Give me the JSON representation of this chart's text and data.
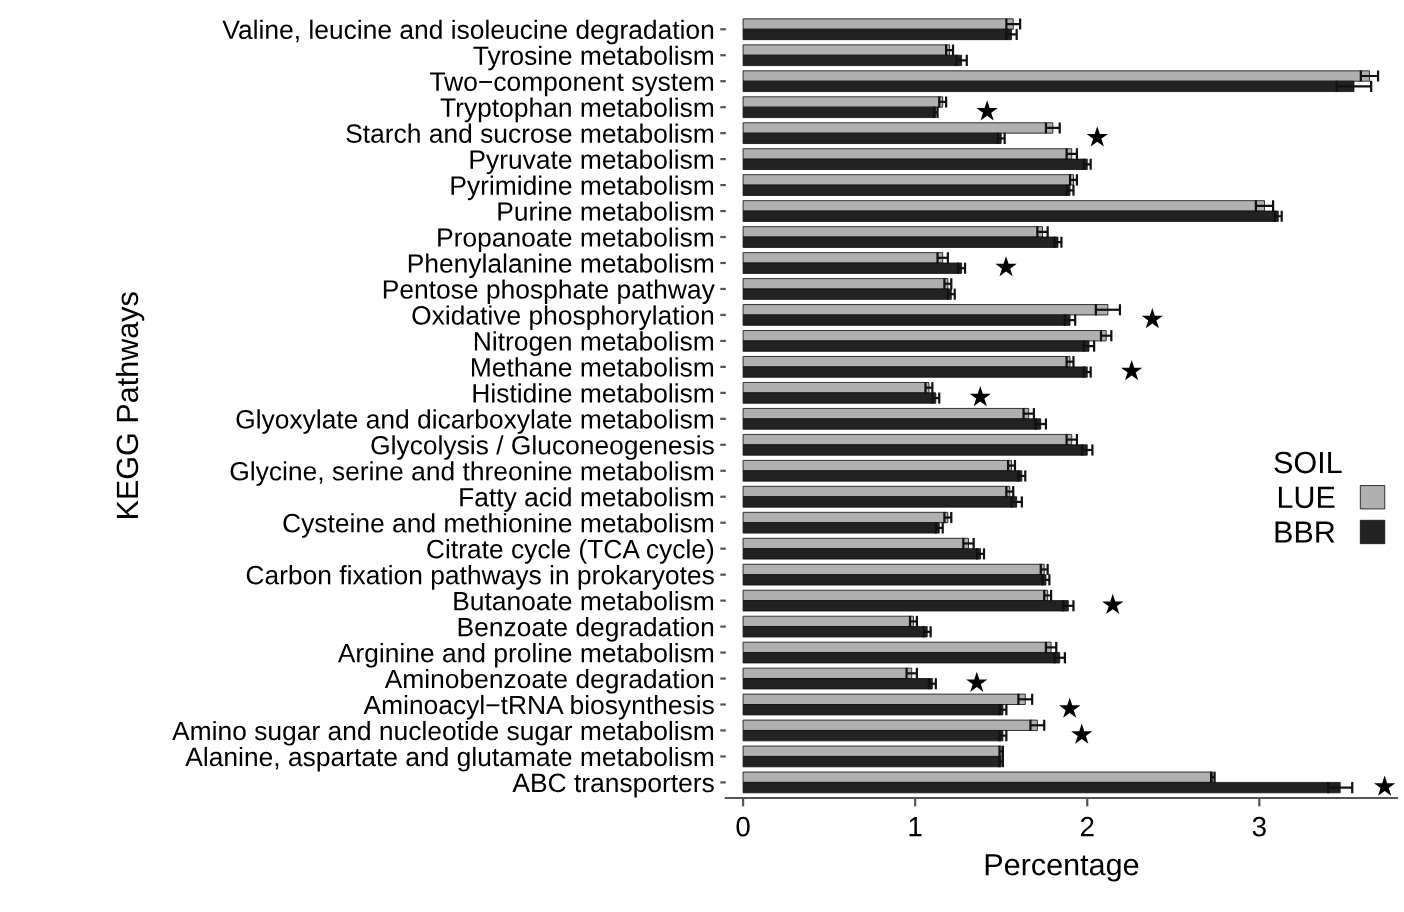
{
  "chart_data": {
    "type": "bar",
    "orientation": "horizontal",
    "xlabel": "Percentage",
    "ylabel": "KEGG Pathways",
    "legend_title": "SOIL",
    "legend": "right",
    "grid": false,
    "categories": [
      "Valine, leucine and isoleucine degradation",
      "Tyrosine metabolism",
      "Two−component system",
      "Tryptophan metabolism",
      "Starch and sucrose metabolism",
      "Pyruvate metabolism",
      "Pyrimidine metabolism",
      "Purine metabolism",
      "Propanoate metabolism",
      "Phenylalanine metabolism",
      "Pentose phosphate pathway",
      "Oxidative phosphorylation",
      "Nitrogen metabolism",
      "Methane metabolism",
      "Histidine metabolism",
      "Glyoxylate and dicarboxylate metabolism",
      "Glycolysis / Gluconeogenesis",
      "Glycine, serine and threonine metabolism",
      "Fatty acid metabolism",
      "Cysteine and methionine metabolism",
      "Citrate cycle (TCA cycle)",
      "Carbon fixation pathways in prokaryotes",
      "Butanoate metabolism",
      "Benzoate degradation",
      "Arginine and proline metabolism",
      "Aminobenzoate degradation",
      "Aminoacyl−tRNA biosynthesis",
      "Amino sugar and nucleotide sugar metabolism",
      "Alanine, aspartate and glutamate metabolism",
      "ABC transporters"
    ],
    "series": [
      {
        "name": "LUE",
        "color": "#b0b0b0",
        "values": [
          1.57,
          1.2,
          3.64,
          1.16,
          1.8,
          1.91,
          1.92,
          3.03,
          1.74,
          1.16,
          1.19,
          2.12,
          2.11,
          1.9,
          1.08,
          1.66,
          1.91,
          1.56,
          1.55,
          1.19,
          1.31,
          1.75,
          1.77,
          0.99,
          1.79,
          0.98,
          1.64,
          1.71,
          1.5,
          2.73
        ],
        "errors": [
          0.04,
          0.02,
          0.05,
          0.02,
          0.04,
          0.03,
          0.02,
          0.05,
          0.03,
          0.03,
          0.02,
          0.07,
          0.03,
          0.02,
          0.02,
          0.03,
          0.03,
          0.02,
          0.02,
          0.02,
          0.03,
          0.02,
          0.02,
          0.02,
          0.03,
          0.03,
          0.04,
          0.04,
          0.01,
          0.01
        ]
      },
      {
        "name": "BBR",
        "color": "#222222",
        "values": [
          1.56,
          1.27,
          3.55,
          1.12,
          1.5,
          2.0,
          1.9,
          3.11,
          1.83,
          1.27,
          1.21,
          1.9,
          2.01,
          2.0,
          1.12,
          1.73,
          2.0,
          1.62,
          1.59,
          1.14,
          1.38,
          1.76,
          1.89,
          1.07,
          1.84,
          1.1,
          1.51,
          1.51,
          1.5,
          3.47
        ],
        "errors": [
          0.03,
          0.03,
          0.1,
          0.01,
          0.02,
          0.02,
          0.02,
          0.02,
          0.02,
          0.02,
          0.02,
          0.03,
          0.03,
          0.02,
          0.02,
          0.03,
          0.03,
          0.02,
          0.03,
          0.02,
          0.02,
          0.02,
          0.03,
          0.02,
          0.03,
          0.02,
          0.02,
          0.02,
          0.01,
          0.07
        ]
      }
    ],
    "xlim": [
      -0.1,
      3.8
    ],
    "xticks": [
      0,
      1,
      2,
      3
    ],
    "annotations": [
      {
        "text": "★",
        "x": 1.16,
        "y": "Tryptophan metabolism"
      },
      {
        "text": "★",
        "x": 1.8,
        "y": "Starch and sucrose metabolism"
      },
      {
        "text": "★",
        "x": 1.27,
        "y": "Phenylalanine metabolism"
      },
      {
        "text": "★",
        "x": 2.12,
        "y": "Oxidative phosphorylation"
      },
      {
        "text": "★",
        "x": 2.0,
        "y": "Methane metabolism"
      },
      {
        "text": "★",
        "x": 1.12,
        "y": "Histidine metabolism"
      },
      {
        "text": "★",
        "x": 1.89,
        "y": "Butanoate metabolism"
      },
      {
        "text": "★",
        "x": 1.1,
        "y": "Aminobenzoate degradation"
      },
      {
        "text": "★",
        "x": 1.64,
        "y": "Aminoacyl−tRNA biosynthesis"
      },
      {
        "text": "★",
        "x": 1.71,
        "y": "Amino sugar and nucleotide sugar metabolism"
      },
      {
        "text": "★",
        "x": 3.47,
        "y": "ABC transporters"
      }
    ]
  }
}
